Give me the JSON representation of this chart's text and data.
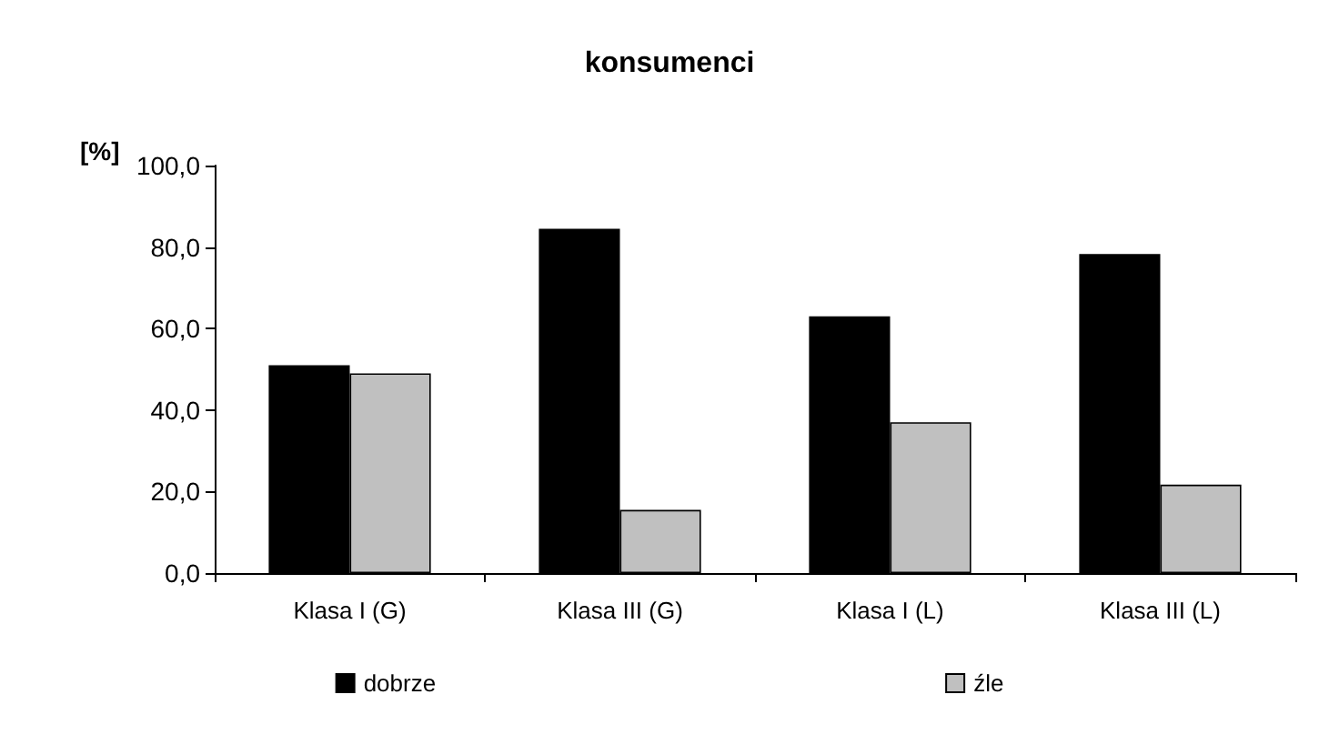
{
  "chart_data": {
    "type": "bar",
    "title": "konsumenci",
    "ylabel": "[%]",
    "categories": [
      "Klasa I (G)",
      "Klasa III (G)",
      "Klasa I (L)",
      "Klasa III (L)"
    ],
    "series": [
      {
        "name": "dobrze",
        "color": "#000000",
        "values": [
          51,
          84.5,
          63,
          78.3
        ]
      },
      {
        "name": "źle",
        "color": "#c0c0c0",
        "values": [
          49,
          15.5,
          37,
          21.7
        ]
      }
    ],
    "ylim": [
      0,
      100
    ],
    "yticks": [
      {
        "value": 0,
        "label": "0,0"
      },
      {
        "value": 20,
        "label": "20,0"
      },
      {
        "value": 40,
        "label": "40,0"
      },
      {
        "value": 60,
        "label": "60,0"
      },
      {
        "value": 80,
        "label": "80,0"
      },
      {
        "value": 100,
        "label": "100,0"
      }
    ],
    "grid": false,
    "legend": "bottom"
  }
}
